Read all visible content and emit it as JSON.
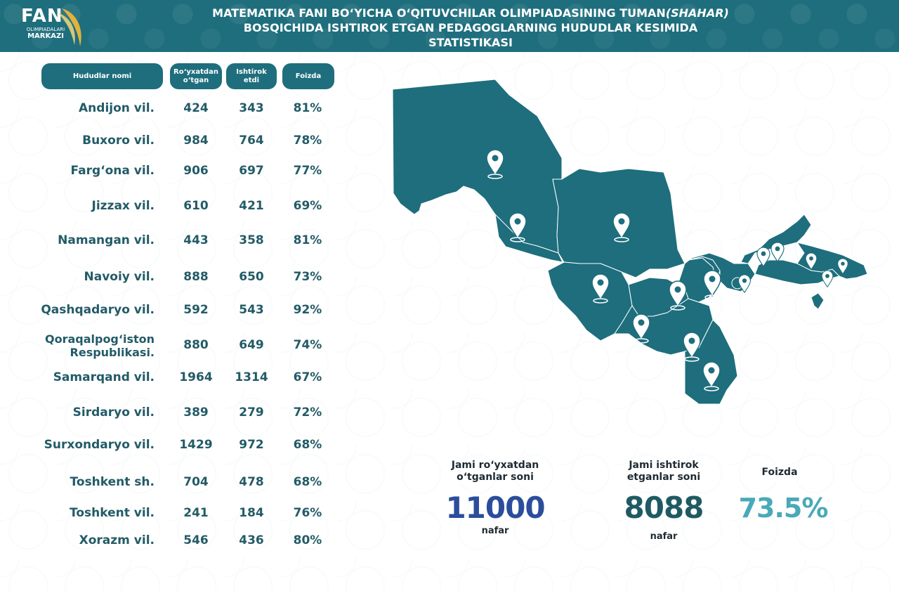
{
  "header": {
    "logo": {
      "brand": "FAN",
      "line1": "OLIMPIADALARI",
      "line2": "MARKAZI"
    },
    "title_line1_a": "MATEMATIKA FANI BO‘YICHA O‘QITUVCHILAR OLIMPIADASINING TUMAN",
    "title_line1_b": "(SHAHAR)",
    "title_line2": "BOSQICHIDA ISHTIROK ETGAN PEDAGOGLARNING HUDUDLAR KESIMIDA",
    "title_line3": "STATISTIKASI"
  },
  "table": {
    "headers": {
      "region": "Hududlar nomi",
      "registered": "Ro‘yxatdan o‘tgan",
      "participated": "Ishtirok etdi",
      "percent": "Foizda"
    },
    "rows": [
      {
        "name": "Andijon vil.",
        "registered": "424",
        "participated": "343",
        "percent": "81%"
      },
      {
        "name": "Buxoro vil.",
        "registered": "984",
        "participated": "764",
        "percent": "78%"
      },
      {
        "name": "Farg‘ona vil.",
        "registered": "906",
        "participated": "697",
        "percent": "77%"
      },
      {
        "name": "Jizzax vil.",
        "registered": "610",
        "participated": "421",
        "percent": "69%"
      },
      {
        "name": "Namangan vil.",
        "registered": "443",
        "participated": "358",
        "percent": "81%"
      },
      {
        "name": "Navoiy vil.",
        "registered": "888",
        "participated": "650",
        "percent": "73%"
      },
      {
        "name": "Qashqadaryo vil.",
        "registered": "592",
        "participated": "543",
        "percent": "92%"
      },
      {
        "name": "Qoraqalpog‘iston Respublikasi.",
        "registered": "880",
        "participated": "649",
        "percent": "74%"
      },
      {
        "name": "Samarqand vil.",
        "registered": "1964",
        "participated": "1314",
        "percent": "67%"
      },
      {
        "name": "Sirdaryo vil.",
        "registered": "389",
        "participated": "279",
        "percent": "72%"
      },
      {
        "name": "Surxondaryo vil.",
        "registered": "1429",
        "participated": "972",
        "percent": "68%"
      },
      {
        "name": "Toshkent sh.",
        "registered": "704",
        "participated": "478",
        "percent": "68%"
      },
      {
        "name": "Toshkent vil.",
        "registered": "241",
        "participated": "184",
        "percent": "76%"
      },
      {
        "name": "Xorazm vil.",
        "registered": "546",
        "participated": "436",
        "percent": "80%"
      }
    ]
  },
  "map": {
    "icon": "uzbekistan-map",
    "marker_icon": "location-pin-icon",
    "fill_color": "#1e6e7d"
  },
  "stats": {
    "registered": {
      "label_line1": "Jami ro‘yxatdan",
      "label_line2": "o‘tganlar soni",
      "value": "11000",
      "unit": "nafar",
      "color": "#2b4d9c"
    },
    "participated": {
      "label_line1": "Jami ishtirok",
      "label_line2": "etganlar soni",
      "value": "8088",
      "unit": "nafar",
      "color": "#1f5a63"
    },
    "percent": {
      "label": "Foizda",
      "value": "73.5%",
      "color": "#4aa9b8"
    }
  }
}
